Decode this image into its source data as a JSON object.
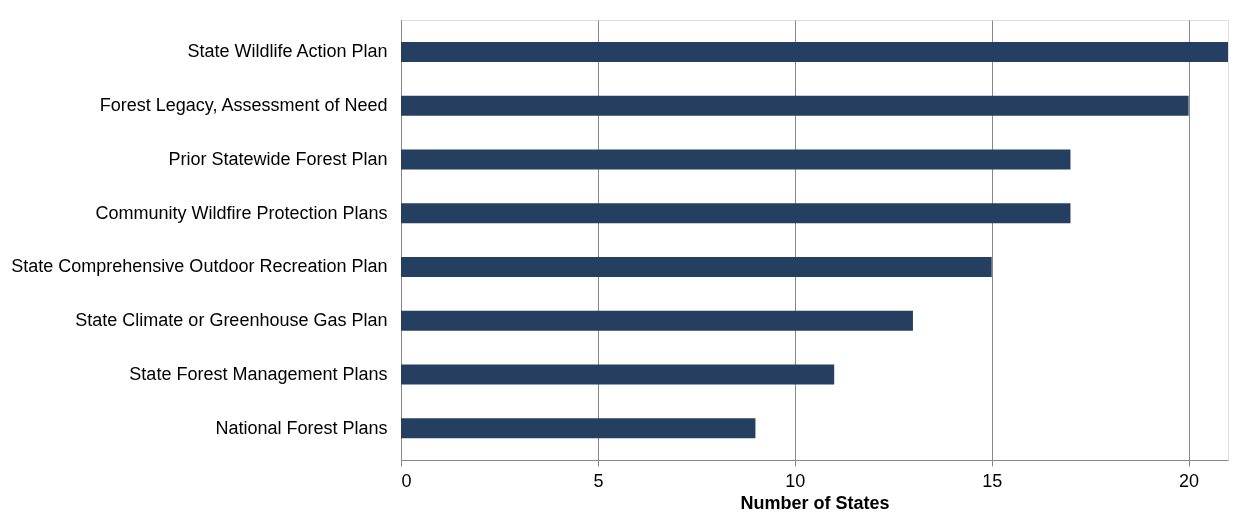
{
  "chart_data": {
    "type": "bar",
    "orientation": "horizontal",
    "categories": [
      "State Wildlife Action Plan",
      "Forest Legacy, Assessment of Need",
      "Prior Statewide Forest Plan",
      "Community Wildfire Protection Plans",
      "State Comprehensive Outdoor Recreation Plan",
      "State Climate or Greenhouse Gas Plan",
      "State Forest Management Plans",
      "National Forest Plans"
    ],
    "values": [
      21,
      20,
      17,
      17,
      15,
      13,
      11,
      9
    ],
    "color": "#243f60",
    "xlabel": "Number of States",
    "xlim": [
      0,
      21
    ],
    "xticks": [
      0,
      5,
      10,
      15,
      20
    ],
    "grid": "x"
  }
}
